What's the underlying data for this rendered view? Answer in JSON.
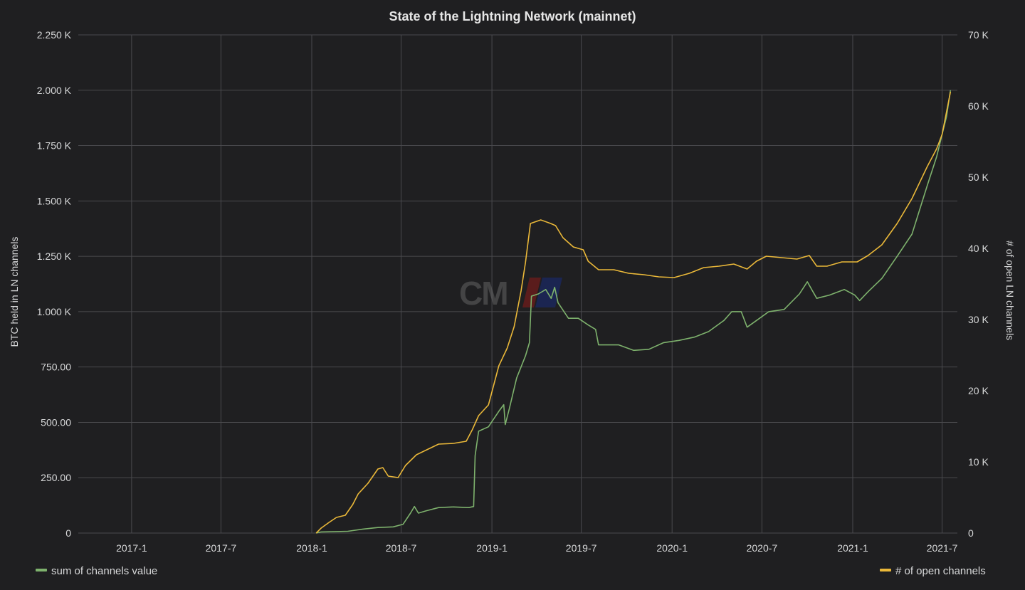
{
  "chart_data": {
    "type": "line",
    "title": "State of the Lightning Network (mainnet)",
    "ylabel_left": "BTC held in LN channels",
    "ylabel_right": "# of open LN channels",
    "ylim_left": [
      0,
      2250
    ],
    "ylim_right": [
      0,
      70000
    ],
    "xlim": [
      "2016-09-15",
      "2021-08-01"
    ],
    "grid": true,
    "legend_placement": "bottom",
    "x_ticks": [
      {
        "date": "2017-01-01",
        "label": "2017-1"
      },
      {
        "date": "2017-07-01",
        "label": "2017-7"
      },
      {
        "date": "2018-01-01",
        "label": "2018-1"
      },
      {
        "date": "2018-07-01",
        "label": "2018-7"
      },
      {
        "date": "2019-01-01",
        "label": "2019-1"
      },
      {
        "date": "2019-07-01",
        "label": "2019-7"
      },
      {
        "date": "2020-01-01",
        "label": "2020-1"
      },
      {
        "date": "2020-07-01",
        "label": "2020-7"
      },
      {
        "date": "2021-01-01",
        "label": "2021-1"
      },
      {
        "date": "2021-07-01",
        "label": "2021-7"
      }
    ],
    "y_ticks_left": [
      {
        "value": 0,
        "label": "0"
      },
      {
        "value": 250,
        "label": "250.00"
      },
      {
        "value": 500,
        "label": "500.00"
      },
      {
        "value": 750,
        "label": "750.00"
      },
      {
        "value": 1000,
        "label": "1.000 K"
      },
      {
        "value": 1250,
        "label": "1.250 K"
      },
      {
        "value": 1500,
        "label": "1.500 K"
      },
      {
        "value": 1750,
        "label": "1.750 K"
      },
      {
        "value": 2000,
        "label": "2.000 K"
      },
      {
        "value": 2250,
        "label": "2.250 K"
      }
    ],
    "y_ticks_right": [
      {
        "value": 0,
        "label": "0"
      },
      {
        "value": 10000,
        "label": "10 K"
      },
      {
        "value": 20000,
        "label": "20 K"
      },
      {
        "value": 30000,
        "label": "30 K"
      },
      {
        "value": 40000,
        "label": "40 K"
      },
      {
        "value": 50000,
        "label": "50 K"
      },
      {
        "value": 60000,
        "label": "60 K"
      },
      {
        "value": 70000,
        "label": "70 K"
      }
    ],
    "series": [
      {
        "name": "sum of channels value",
        "axis": "left",
        "color": "#7eb26d",
        "points": [
          [
            "2018-01-10",
            0
          ],
          [
            "2018-01-20",
            5
          ],
          [
            "2018-02-15",
            6
          ],
          [
            "2018-03-15",
            8
          ],
          [
            "2018-04-15",
            18
          ],
          [
            "2018-05-15",
            25
          ],
          [
            "2018-06-15",
            28
          ],
          [
            "2018-07-05",
            40
          ],
          [
            "2018-07-20",
            90
          ],
          [
            "2018-07-28",
            120
          ],
          [
            "2018-08-05",
            90
          ],
          [
            "2018-08-20",
            100
          ],
          [
            "2018-09-15",
            115
          ],
          [
            "2018-10-15",
            118
          ],
          [
            "2018-11-15",
            115
          ],
          [
            "2018-11-25",
            120
          ],
          [
            "2018-11-28",
            350
          ],
          [
            "2018-12-05",
            460
          ],
          [
            "2018-12-25",
            480
          ],
          [
            "2019-01-15",
            550
          ],
          [
            "2019-01-25",
            580
          ],
          [
            "2019-01-28",
            490
          ],
          [
            "2019-02-05",
            560
          ],
          [
            "2019-02-20",
            700
          ],
          [
            "2019-03-10",
            800
          ],
          [
            "2019-03-18",
            860
          ],
          [
            "2019-03-22",
            1070
          ],
          [
            "2019-04-05",
            1080
          ],
          [
            "2019-04-20",
            1100
          ],
          [
            "2019-05-01",
            1060
          ],
          [
            "2019-05-08",
            1110
          ],
          [
            "2019-05-15",
            1040
          ],
          [
            "2019-06-05",
            970
          ],
          [
            "2019-06-25",
            970
          ],
          [
            "2019-07-15",
            940
          ],
          [
            "2019-07-30",
            920
          ],
          [
            "2019-08-05",
            850
          ],
          [
            "2019-09-15",
            850
          ],
          [
            "2019-10-15",
            825
          ],
          [
            "2019-11-15",
            830
          ],
          [
            "2019-12-15",
            860
          ],
          [
            "2020-01-15",
            870
          ],
          [
            "2020-02-15",
            885
          ],
          [
            "2020-03-15",
            910
          ],
          [
            "2020-04-15",
            960
          ],
          [
            "2020-05-01",
            1000
          ],
          [
            "2020-05-20",
            1000
          ],
          [
            "2020-06-01",
            930
          ],
          [
            "2020-06-20",
            960
          ],
          [
            "2020-07-15",
            1000
          ],
          [
            "2020-08-15",
            1010
          ],
          [
            "2020-09-15",
            1080
          ],
          [
            "2020-10-01",
            1135
          ],
          [
            "2020-10-20",
            1060
          ],
          [
            "2020-11-15",
            1075
          ],
          [
            "2020-12-15",
            1100
          ],
          [
            "2021-01-05",
            1075
          ],
          [
            "2021-01-15",
            1050
          ],
          [
            "2021-02-01",
            1090
          ],
          [
            "2021-03-01",
            1150
          ],
          [
            "2021-04-01",
            1250
          ],
          [
            "2021-05-01",
            1350
          ],
          [
            "2021-06-01",
            1570
          ],
          [
            "2021-06-20",
            1700
          ],
          [
            "2021-07-01",
            1800
          ],
          [
            "2021-07-10",
            1880
          ],
          [
            "2021-07-18",
            2000
          ]
        ]
      },
      {
        "name": "# of open channels",
        "axis": "right",
        "color": "#eab839",
        "points": [
          [
            "2018-01-10",
            0
          ],
          [
            "2018-01-20",
            700
          ],
          [
            "2018-02-05",
            1500
          ],
          [
            "2018-02-20",
            2200
          ],
          [
            "2018-03-10",
            2500
          ],
          [
            "2018-03-25",
            4000
          ],
          [
            "2018-04-05",
            5500
          ],
          [
            "2018-04-25",
            7000
          ],
          [
            "2018-05-15",
            9000
          ],
          [
            "2018-05-25",
            9200
          ],
          [
            "2018-06-05",
            8000
          ],
          [
            "2018-06-25",
            7800
          ],
          [
            "2018-07-10",
            9500
          ],
          [
            "2018-08-01",
            11000
          ],
          [
            "2018-08-25",
            11800
          ],
          [
            "2018-09-15",
            12500
          ],
          [
            "2018-10-15",
            12600
          ],
          [
            "2018-11-10",
            12900
          ],
          [
            "2018-11-22",
            14500
          ],
          [
            "2018-12-05",
            16500
          ],
          [
            "2018-12-25",
            18000
          ],
          [
            "2019-01-15",
            23500
          ],
          [
            "2019-02-01",
            26000
          ],
          [
            "2019-02-15",
            29000
          ],
          [
            "2019-03-01",
            34000
          ],
          [
            "2019-03-10",
            38000
          ],
          [
            "2019-03-20",
            43500
          ],
          [
            "2019-04-10",
            44000
          ],
          [
            "2019-04-30",
            43500
          ],
          [
            "2019-05-10",
            43200
          ],
          [
            "2019-05-25",
            41500
          ],
          [
            "2019-06-15",
            40200
          ],
          [
            "2019-07-05",
            39800
          ],
          [
            "2019-07-15",
            38200
          ],
          [
            "2019-08-05",
            37000
          ],
          [
            "2019-09-05",
            37000
          ],
          [
            "2019-10-05",
            36500
          ],
          [
            "2019-11-05",
            36300
          ],
          [
            "2019-12-05",
            36000
          ],
          [
            "2020-01-05",
            35900
          ],
          [
            "2020-02-05",
            36500
          ],
          [
            "2020-03-05",
            37300
          ],
          [
            "2020-04-05",
            37500
          ],
          [
            "2020-05-05",
            37800
          ],
          [
            "2020-06-01",
            37100
          ],
          [
            "2020-06-20",
            38200
          ],
          [
            "2020-07-10",
            38900
          ],
          [
            "2020-08-10",
            38700
          ],
          [
            "2020-09-10",
            38500
          ],
          [
            "2020-10-05",
            39000
          ],
          [
            "2020-10-20",
            37500
          ],
          [
            "2020-11-10",
            37500
          ],
          [
            "2020-12-10",
            38100
          ],
          [
            "2021-01-10",
            38100
          ],
          [
            "2021-02-01",
            39000
          ],
          [
            "2021-03-01",
            40500
          ],
          [
            "2021-04-01",
            43500
          ],
          [
            "2021-05-01",
            47000
          ],
          [
            "2021-06-01",
            51500
          ],
          [
            "2021-06-20",
            54000
          ],
          [
            "2021-07-01",
            56000
          ],
          [
            "2021-07-18",
            62000
          ]
        ]
      }
    ]
  }
}
